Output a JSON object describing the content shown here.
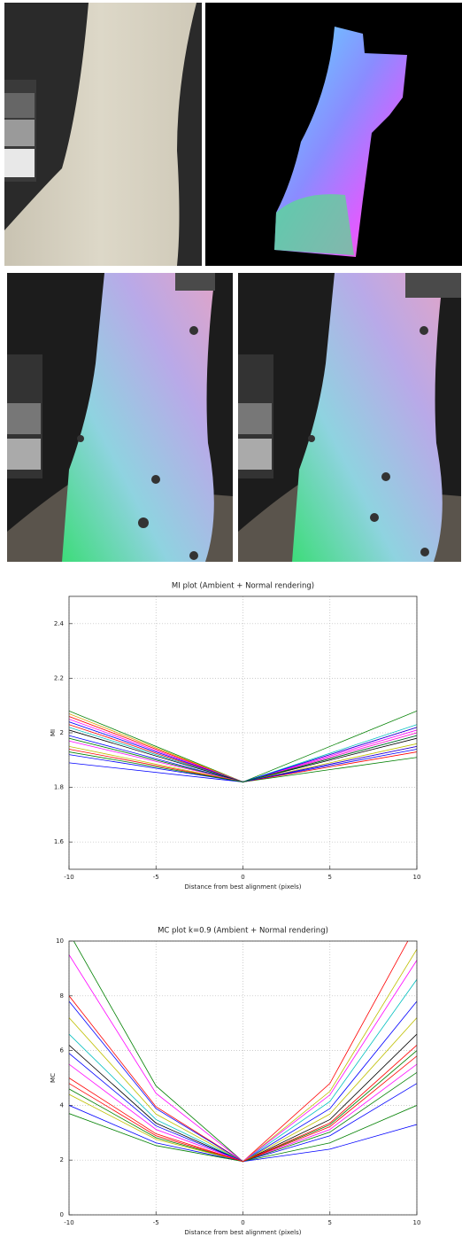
{
  "chart_data": [
    {
      "type": "line",
      "title": "MI plot (Ambient + Normal rendering)",
      "xlabel": "Distance from best alignment (pixels)",
      "ylabel": "MI",
      "x": [
        -10,
        0,
        10
      ],
      "xlim": [
        -10,
        10
      ],
      "ylim": [
        1.5,
        2.5
      ],
      "xticks": [
        -10,
        -5,
        0,
        5,
        10
      ],
      "yticks": [
        1.6,
        1.8,
        2,
        2.2,
        2.4
      ],
      "grid": true,
      "series": [
        {
          "color": "#008000",
          "values": [
            2.08,
            1.82,
            2.08
          ]
        },
        {
          "color": "#ff0000",
          "values": [
            2.06,
            1.82,
            2.02
          ]
        },
        {
          "color": "#e0a000",
          "values": [
            2.07,
            1.82,
            2.0
          ]
        },
        {
          "color": "#ff00ff",
          "values": [
            2.05,
            1.82,
            2.01
          ]
        },
        {
          "color": "#0000ff",
          "values": [
            2.04,
            1.82,
            1.99
          ]
        },
        {
          "color": "#ff0000",
          "values": [
            2.03,
            1.82,
            1.95
          ]
        },
        {
          "color": "#00bfbf",
          "values": [
            2.02,
            1.82,
            2.03
          ]
        },
        {
          "color": "#000000",
          "values": [
            2.01,
            1.82,
            1.98
          ]
        },
        {
          "color": "#0000ff",
          "values": [
            1.99,
            1.82,
            1.94
          ]
        },
        {
          "color": "#008000",
          "values": [
            1.98,
            1.82,
            1.91
          ]
        },
        {
          "color": "#ff00ff",
          "values": [
            1.97,
            1.82,
            2.0
          ]
        },
        {
          "color": "#bfbf00",
          "values": [
            1.95,
            1.82,
            1.96
          ]
        },
        {
          "color": "#ff0000",
          "values": [
            1.94,
            1.82,
            1.93
          ]
        },
        {
          "color": "#0000ff",
          "values": [
            1.92,
            1.82,
            2.02
          ]
        },
        {
          "color": "#0000ff",
          "values": [
            1.89,
            1.82,
            1.95
          ]
        },
        {
          "color": "#008000",
          "values": [
            1.93,
            1.82,
            1.99
          ]
        }
      ]
    },
    {
      "type": "line",
      "title": "MC plot k=0.9 (Ambient + Normal rendering)",
      "xlabel": "Distance from best alignment (pixels)",
      "ylabel": "MC",
      "x": [
        -10,
        -5,
        0,
        5,
        10
      ],
      "xlim": [
        -10,
        10
      ],
      "ylim": [
        0,
        10
      ],
      "xticks": [
        -10,
        -5,
        0,
        5,
        10
      ],
      "yticks": [
        0,
        2,
        4,
        6,
        8,
        10
      ],
      "grid": true,
      "series": [
        {
          "color": "#008000",
          "values": [
            10.3,
            4.71,
            1.95,
            3.29,
            6.0
          ]
        },
        {
          "color": "#ff00ff",
          "values": [
            9.5,
            4.44,
            1.95,
            3.12,
            5.5
          ]
        },
        {
          "color": "#ff0000",
          "values": [
            8.0,
            3.95,
            1.95,
            4.8,
            10.6
          ]
        },
        {
          "color": "#0000ff",
          "values": [
            7.8,
            3.88,
            1.95,
            3.88,
            7.8
          ]
        },
        {
          "color": "#bfbf00",
          "values": [
            7.2,
            3.68,
            1.95,
            4.51,
            9.7
          ]
        },
        {
          "color": "#00bfbf",
          "values": [
            6.6,
            3.48,
            1.95,
            4.14,
            8.6
          ]
        },
        {
          "color": "#000000",
          "values": [
            6.2,
            3.35,
            1.95,
            3.48,
            6.6
          ]
        },
        {
          "color": "#0000ff",
          "values": [
            5.9,
            3.25,
            1.95,
            2.89,
            4.8
          ]
        },
        {
          "color": "#ff00ff",
          "values": [
            5.5,
            3.12,
            1.95,
            4.38,
            9.3
          ]
        },
        {
          "color": "#ff0000",
          "values": [
            5.0,
            2.96,
            1.95,
            3.22,
            5.8
          ]
        },
        {
          "color": "#008000",
          "values": [
            4.6,
            2.82,
            1.95,
            2.63,
            4.0
          ]
        },
        {
          "color": "#bfbf00",
          "values": [
            4.4,
            2.76,
            1.95,
            3.68,
            7.2
          ]
        },
        {
          "color": "#0000ff",
          "values": [
            4.0,
            2.63,
            1.95,
            2.4,
            3.3
          ]
        },
        {
          "color": "#008000",
          "values": [
            3.7,
            2.53,
            1.95,
            3.02,
            5.2
          ]
        },
        {
          "color": "#ff0000",
          "values": [
            4.8,
            2.89,
            1.95,
            3.35,
            6.2
          ]
        }
      ]
    }
  ]
}
